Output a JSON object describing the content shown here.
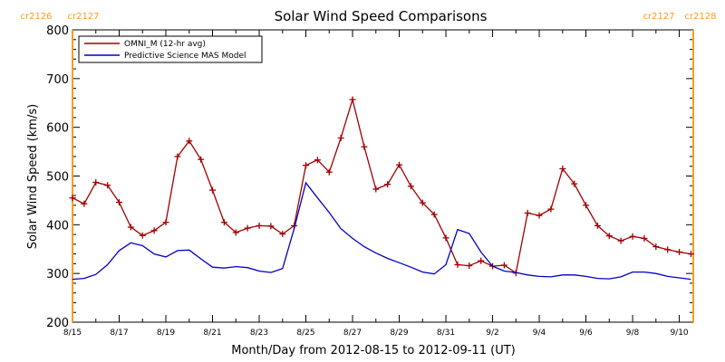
{
  "chart_data": {
    "type": "line",
    "title": "Solar Wind Speed Comparisons",
    "xlabel": "Month/Day from 2012-08-15 to 2012-09-11 (UT)",
    "ylabel": "Solar Wind Speed (km/s)",
    "ylim": [
      200,
      800
    ],
    "yticks": [
      200,
      300,
      400,
      500,
      600,
      700,
      800
    ],
    "xlim": [
      0,
      26.6
    ],
    "x_unit": "days since 2012-08-15",
    "xticks": [
      {
        "x": 0,
        "label": "8/15"
      },
      {
        "x": 2,
        "label": "8/17"
      },
      {
        "x": 4,
        "label": "8/19"
      },
      {
        "x": 6,
        "label": "8/21"
      },
      {
        "x": 8,
        "label": "8/23"
      },
      {
        "x": 10,
        "label": "8/25"
      },
      {
        "x": 12,
        "label": "8/27"
      },
      {
        "x": 14,
        "label": "8/29"
      },
      {
        "x": 16,
        "label": "8/31"
      },
      {
        "x": 18,
        "label": "9/2"
      },
      {
        "x": 20,
        "label": "9/4"
      },
      {
        "x": 22,
        "label": "9/6"
      },
      {
        "x": 24,
        "label": "9/8"
      },
      {
        "x": 26,
        "label": "9/10"
      }
    ],
    "legend": {
      "placement": "top-left"
    },
    "series": [
      {
        "name": "OMNI_M (12-hr avg)",
        "color": "#a00000",
        "marker": "+",
        "x": [
          0,
          0.5,
          1,
          1.5,
          2,
          2.5,
          3,
          3.5,
          4,
          4.5,
          5,
          5.5,
          6,
          6.5,
          7,
          7.5,
          8,
          8.5,
          9,
          9.5,
          10,
          10.5,
          11,
          11.5,
          12,
          12.5,
          13,
          13.5,
          14,
          14.5,
          15,
          15.5,
          16,
          16.5,
          17,
          17.5,
          18,
          18.5,
          19,
          19.5,
          20,
          20.5,
          21,
          21.5,
          22,
          22.5,
          23,
          23.5,
          24,
          24.5,
          25,
          25.5,
          26,
          26.5
        ],
        "values": [
          455,
          443,
          487,
          481,
          446,
          395,
          378,
          388,
          405,
          540,
          572,
          534,
          471,
          405,
          384,
          393,
          398,
          397,
          381,
          398,
          522,
          533,
          508,
          578,
          657,
          560,
          473,
          483,
          523,
          479,
          445,
          421,
          373,
          318,
          316,
          326,
          315,
          317,
          301,
          424,
          419,
          432,
          515,
          484,
          440,
          398,
          377,
          367,
          376,
          372,
          355,
          349,
          344,
          340
        ]
      },
      {
        "name": "Predictive Science MAS Model",
        "color": "#0000c8",
        "marker": "none",
        "x": [
          0,
          0.5,
          1,
          1.5,
          2,
          2.5,
          3,
          3.5,
          4,
          4.5,
          5,
          5.5,
          6,
          6.5,
          7,
          7.5,
          8,
          8.5,
          9,
          9.5,
          10,
          10.5,
          11,
          11.5,
          12,
          12.5,
          13,
          13.5,
          14,
          14.5,
          15,
          15.5,
          16,
          16.5,
          17,
          17.5,
          18,
          18.5,
          19,
          19.5,
          20,
          20.5,
          21,
          21.5,
          22,
          22.5,
          23,
          23.5,
          24,
          24.5,
          25,
          25.5,
          26,
          26.5
        ],
        "values": [
          288,
          290,
          298,
          318,
          347,
          363,
          357,
          340,
          334,
          347,
          348,
          330,
          313,
          311,
          314,
          312,
          305,
          302,
          310,
          392,
          486,
          455,
          425,
          392,
          372,
          355,
          342,
          331,
          322,
          313,
          303,
          299,
          318,
          390,
          382,
          344,
          315,
          305,
          302,
          297,
          294,
          293,
          297,
          297,
          294,
          290,
          289,
          293,
          303,
          303,
          300,
          294,
          291,
          288
        ]
      }
    ],
    "markers_vertical": [
      {
        "x": 0,
        "color": "#ff9a1e",
        "labels": [
          "cr2126",
          "cr2127"
        ],
        "side": "left"
      },
      {
        "x": 26.6,
        "color": "#ff9a1e",
        "labels": [
          "cr2127",
          "cr2128"
        ],
        "side": "right"
      }
    ]
  }
}
